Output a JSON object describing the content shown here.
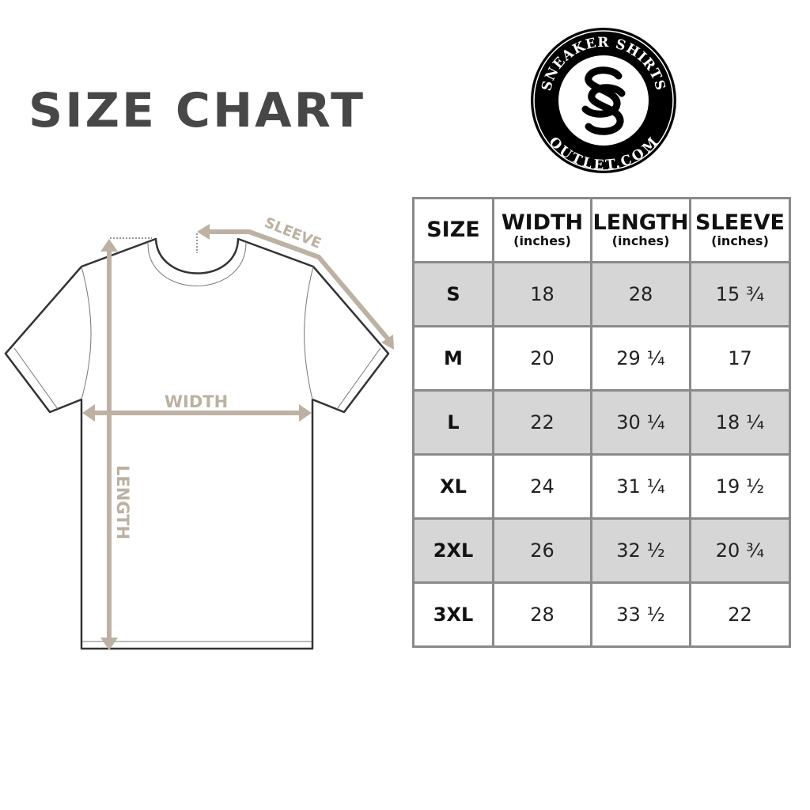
{
  "title": "SIZE CHART",
  "logo": {
    "top_text": "SNEAKER SHIRTS",
    "bottom_text": "OUTLET.COM",
    "monogram": "SS"
  },
  "diagram": {
    "sleeve_label": "SLEEVE",
    "width_label": "WIDTH",
    "length_label": "LENGTH",
    "accent_color": "#bcb1a2"
  },
  "table": {
    "headers": [
      {
        "label": "SIZE",
        "unit": ""
      },
      {
        "label": "WIDTH",
        "unit": "(inches)"
      },
      {
        "label": "LENGTH",
        "unit": "(inches)"
      },
      {
        "label": "SLEEVE",
        "unit": "(inches)"
      }
    ],
    "rows": [
      [
        "S",
        "18",
        "28",
        "15 ¾"
      ],
      [
        "M",
        "20",
        "29 ¼",
        "17"
      ],
      [
        "L",
        "22",
        "30 ¼",
        "18 ¼"
      ],
      [
        "XL",
        "24",
        "31 ¼",
        "19 ½"
      ],
      [
        "2XL",
        "26",
        "32 ½",
        "20 ¾"
      ],
      [
        "3XL",
        "28",
        "33 ½",
        "22"
      ]
    ]
  }
}
